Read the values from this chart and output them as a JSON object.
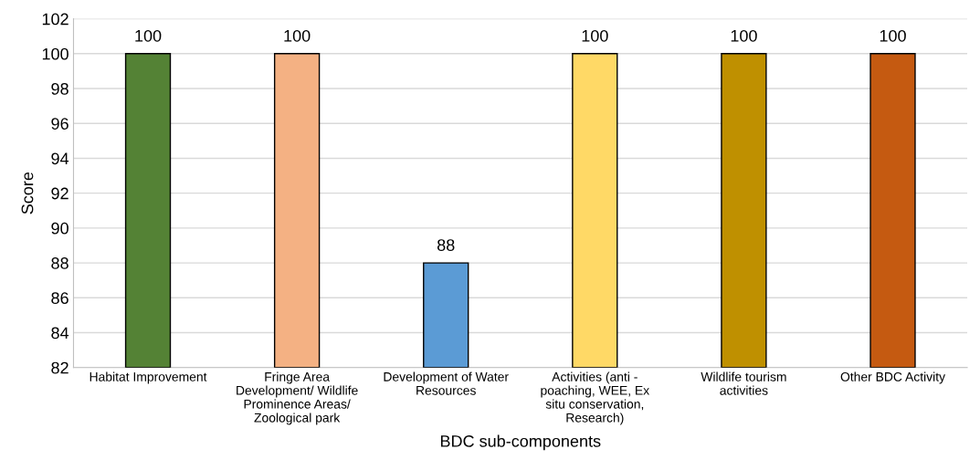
{
  "chart_data": {
    "type": "bar",
    "xlabel": "BDC sub-components",
    "ylabel": "Score",
    "categories": [
      "Habitat Improvement",
      "Fringe Area\nDevelopment/ Wildlife\nProminence Areas/\nZoological park",
      "Development of Water\nResources",
      "Activities (anti -\npoaching, WEE, Ex\nsitu conservation,\nResearch)",
      "Wildlife tourism\nactivities",
      "Other BDC Activity"
    ],
    "values": [
      100,
      100,
      88,
      100,
      100,
      100
    ],
    "colors": [
      "#548235",
      "#f4b183",
      "#5b9bd5",
      "#ffd966",
      "#bf9000",
      "#c55a11"
    ],
    "ylim": [
      82,
      102
    ],
    "yticks": [
      82,
      84,
      86,
      88,
      90,
      92,
      94,
      96,
      98,
      100,
      102
    ],
    "grid": "y",
    "data_labels": true
  }
}
